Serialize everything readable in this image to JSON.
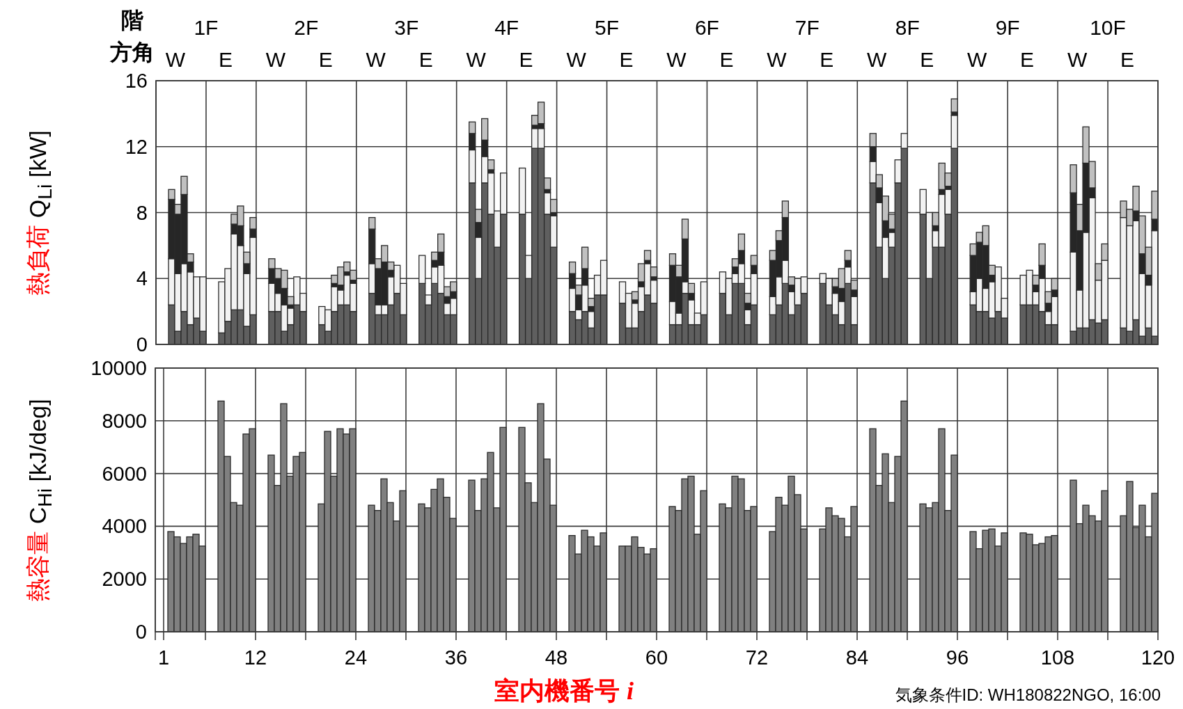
{
  "chart_data": [
    {
      "type": "bar",
      "stacked": true,
      "ylabel": "熱負荷 Q$_{Li}$ [kW]",
      "x": [
        1.875,
        2.625,
        3.375,
        4.125,
        4.875,
        5.625,
        7.875,
        8.625,
        9.375,
        10.125,
        10.875,
        11.625,
        13.875,
        14.625,
        15.375,
        16.125,
        16.875,
        17.625,
        19.875,
        20.625,
        21.375,
        22.125,
        22.875,
        23.625,
        25.875,
        26.625,
        27.375,
        28.125,
        28.875,
        29.625,
        31.875,
        32.625,
        33.375,
        34.125,
        34.875,
        35.625,
        37.875,
        38.625,
        39.375,
        40.125,
        40.875,
        41.625,
        43.875,
        44.625,
        45.375,
        46.125,
        46.875,
        47.625,
        49.875,
        50.625,
        51.375,
        52.125,
        52.875,
        53.625,
        55.875,
        56.625,
        57.375,
        58.125,
        58.875,
        59.625,
        61.875,
        62.625,
        63.375,
        64.125,
        64.875,
        65.625,
        67.875,
        68.625,
        69.375,
        70.125,
        70.875,
        71.625,
        73.875,
        74.625,
        75.375,
        76.125,
        76.875,
        77.625,
        79.875,
        80.625,
        81.375,
        82.125,
        82.875,
        83.625,
        85.875,
        86.625,
        87.375,
        88.125,
        88.875,
        89.625,
        91.875,
        92.625,
        93.375,
        94.125,
        94.875,
        95.625,
        97.875,
        98.625,
        99.375,
        100.125,
        100.875,
        101.625,
        103.875,
        104.625,
        105.375,
        106.125,
        106.875,
        107.625,
        109.875,
        110.625,
        111.375,
        112.125,
        112.875,
        113.625,
        115.875,
        116.625,
        117.375,
        118.125,
        118.875,
        119.625
      ],
      "series": [
        {
          "color": "#5f5f5f",
          "values": [
            2.4,
            0.8,
            2.0,
            1.2,
            1.6,
            0.8,
            0.7,
            1.4,
            2.1,
            2.1,
            1.1,
            1.8,
            2.0,
            2.0,
            0.8,
            1.2,
            2.4,
            2.0,
            1.2,
            0.8,
            2.0,
            2.4,
            2.4,
            2.0,
            3.1,
            1.8,
            1.8,
            2.4,
            3.1,
            1.8,
            3.7,
            2.4,
            3.7,
            3.1,
            1.8,
            1.8,
            9.8,
            4.0,
            9.8,
            7.9,
            5.9,
            7.9,
            7.9,
            4.0,
            11.9,
            11.9,
            7.9,
            5.9,
            2.0,
            1.5,
            2.0,
            1.0,
            3.0,
            3.0,
            2.5,
            1.0,
            1.0,
            2.0,
            3.0,
            2.5,
            1.2,
            1.2,
            3.1,
            1.2,
            1.2,
            1.8,
            3.1,
            1.8,
            3.7,
            3.7,
            1.2,
            2.4,
            1.8,
            2.4,
            3.7,
            1.8,
            2.4,
            3.1,
            3.7,
            2.4,
            1.8,
            1.2,
            3.7,
            1.2,
            9.8,
            5.9,
            4.0,
            5.9,
            9.8,
            11.9,
            7.9,
            4.0,
            5.9,
            5.9,
            7.9,
            11.9,
            2.4,
            2.0,
            2.0,
            1.6,
            2.0,
            1.6,
            2.4,
            2.4,
            2.4,
            2.0,
            1.2,
            1.2,
            0.8,
            1.0,
            1.0,
            1.5,
            1.3,
            1.5,
            1.0,
            0.8,
            1.5,
            0.5,
            1.0,
            0.5
          ]
        },
        {
          "color": "#f2f2f2",
          "values": [
            2.8,
            3.5,
            2.9,
            3.2,
            2.5,
            3.3,
            3.1,
            3.2,
            4.6,
            3.9,
            3.2,
            4.7,
            1.7,
            1.1,
            1.6,
            1.0,
            1.7,
            1.1,
            1.1,
            1.3,
            1.5,
            0.9,
            1.8,
            1.7,
            1.8,
            0.6,
            0.6,
            1.7,
            1.7,
            1.9,
            1.7,
            0.6,
            1.0,
            1.7,
            0.7,
            1.0,
            2.0,
            2.5,
            1.6,
            2.5,
            2.2,
            2.5,
            2.8,
            1.4,
            1.2,
            1.2,
            1.3,
            1.9,
            1.4,
            0.6,
            1.6,
            1.0,
            1.2,
            2.1,
            1.3,
            2.1,
            1.5,
            1.5,
            1.9,
            1.4,
            1.4,
            0.7,
            0.7,
            1.5,
            0.7,
            2.0,
            1.3,
            2.2,
            0.6,
            1.2,
            0.9,
            1.9,
            1.1,
            1.7,
            1.4,
            1.4,
            1.6,
            1.0,
            0.6,
            1.6,
            1.3,
            1.4,
            1.0,
            1.7,
            1.3,
            2.7,
            2.5,
            0.9,
            1.4,
            0.9,
            1.5,
            4.0,
            1.0,
            3.2,
            1.5,
            2.0,
            0.8,
            2.0,
            1.4,
            2.2,
            2.7,
            1.2,
            1.8,
            2.1,
            0.8,
            2.0,
            0.8,
            1.7,
            4.8,
            2.3,
            5.8,
            7.4,
            2.6,
            3.6,
            6.7,
            6.4,
            6.0,
            3.8,
            2.6,
            6.4
          ]
        },
        {
          "color": "#262626",
          "values": [
            3.6,
            3.6,
            4.2,
            0.6,
            0,
            0,
            0,
            0,
            0.6,
            1.2,
            0.6,
            0.5,
            0.9,
            0.9,
            1.0,
            0.2,
            0,
            0,
            0,
            0,
            0.2,
            0.3,
            0.2,
            0.2,
            2.1,
            2.2,
            2.6,
            0.4,
            0,
            0,
            0,
            0,
            0.4,
            0.8,
            0.4,
            0.4,
            1.0,
            0.9,
            1.0,
            0.2,
            0,
            0,
            0,
            0,
            0.2,
            0.3,
            0.2,
            0.2,
            0.9,
            0.9,
            1.0,
            0.3,
            0,
            0,
            0,
            0,
            0.2,
            0.3,
            0.2,
            0.2,
            2.2,
            2.2,
            2.6,
            0.4,
            0,
            0,
            0,
            0,
            0.4,
            0.8,
            0.4,
            0.5,
            2.2,
            2.2,
            2.6,
            0.4,
            0,
            0,
            0,
            0,
            0.4,
            0.8,
            0.4,
            0.4,
            0.9,
            0.9,
            1.0,
            0.2,
            0,
            0,
            0,
            0,
            0.3,
            0.3,
            0.2,
            0.2,
            2.2,
            2.2,
            2.6,
            0.4,
            0,
            0,
            0,
            0,
            0.4,
            0.8,
            0.5,
            0.4,
            3.6,
            3.6,
            4.2,
            0.6,
            0,
            0,
            0,
            0,
            0.6,
            1.2,
            0.6,
            0.7
          ]
        },
        {
          "color": "#c0c0c0",
          "values": [
            0.6,
            0.6,
            1.1,
            0.5,
            0,
            0,
            0,
            0,
            0.6,
            1.2,
            0.7,
            0.7,
            0.6,
            0.6,
            1.1,
            0.5,
            0,
            0,
            0,
            0,
            0.5,
            1.1,
            0.6,
            0.6,
            0.7,
            0.6,
            1.0,
            0.5,
            0,
            0,
            0,
            0,
            0.5,
            1.1,
            0.6,
            0.6,
            0.7,
            0.8,
            1.3,
            0.6,
            0,
            0,
            0,
            0,
            0.6,
            1.3,
            0.7,
            0.8,
            0.7,
            0.6,
            1.3,
            0.5,
            0,
            0,
            0,
            0,
            0.5,
            1.1,
            0.6,
            0.6,
            0.7,
            0.7,
            1.2,
            0.6,
            0,
            0,
            0,
            0,
            0.5,
            1.0,
            0.6,
            0.6,
            0.6,
            0.6,
            1.0,
            0.5,
            0,
            0,
            0,
            0,
            0.5,
            1.2,
            0.6,
            0.6,
            0.8,
            0.8,
            1.5,
            0.9,
            0,
            0,
            0,
            0,
            0.8,
            1.6,
            0.8,
            0.8,
            0.7,
            0.6,
            1.2,
            0.6,
            0,
            0,
            0,
            0,
            0.6,
            1.3,
            0.7,
            0.7,
            1.7,
            1.6,
            2.2,
            1.6,
            1.0,
            1.0,
            1.0,
            1.0,
            1.5,
            2.3,
            1.7,
            1.7
          ]
        }
      ],
      "xlim": [
        0,
        120
      ],
      "xticks": [
        {
          "value": 0,
          "label": null
        },
        {
          "value": 6,
          "label": null
        },
        {
          "value": 12,
          "label": null
        },
        {
          "value": 18,
          "label": null
        },
        {
          "value": 24,
          "label": null
        },
        {
          "value": 30,
          "label": null
        },
        {
          "value": 36,
          "label": null
        },
        {
          "value": 42,
          "label": null
        },
        {
          "value": 48,
          "label": null
        },
        {
          "value": 54,
          "label": null
        },
        {
          "value": 60,
          "label": null
        },
        {
          "value": 66,
          "label": null
        },
        {
          "value": 72,
          "label": null
        },
        {
          "value": 78,
          "label": null
        },
        {
          "value": 84,
          "label": null
        },
        {
          "value": 90,
          "label": null
        },
        {
          "value": 96,
          "label": null
        },
        {
          "value": 102,
          "label": null
        },
        {
          "value": 108,
          "label": null
        },
        {
          "value": 114,
          "label": null
        },
        {
          "value": 120,
          "label": null
        }
      ],
      "ylim": [
        0,
        16
      ],
      "yticks": [
        0,
        4,
        8,
        12,
        16
      ],
      "annotations": [
        "階",
        "1F",
        "2F",
        "3F",
        "4F",
        "5F",
        "6F",
        "7F",
        "8F",
        "9F",
        "10F",
        "方角",
        "W",
        "E",
        "W",
        "E",
        "W",
        "E",
        "W",
        "E",
        "W",
        "E",
        "W",
        "E",
        "W",
        "E",
        "W",
        "E",
        "W",
        "E",
        "W",
        "E"
      ],
      "tick_labels": "y",
      "grid": true
    },
    {
      "type": "bar",
      "ylabel": "熱容量 C$_{Hi}$ [kJ/deg]",
      "xlabel": "室内機番号 i",
      "x": [
        1.875,
        2.625,
        3.375,
        4.125,
        4.875,
        5.625,
        7.875,
        8.625,
        9.375,
        10.125,
        10.875,
        11.625,
        13.875,
        14.625,
        15.375,
        16.125,
        16.875,
        17.625,
        19.875,
        20.625,
        21.375,
        22.125,
        22.875,
        23.625,
        25.875,
        26.625,
        27.375,
        28.125,
        28.875,
        29.625,
        31.875,
        32.625,
        33.375,
        34.125,
        34.875,
        35.625,
        37.875,
        38.625,
        39.375,
        40.125,
        40.875,
        41.625,
        43.875,
        44.625,
        45.375,
        46.125,
        46.875,
        47.625,
        49.875,
        50.625,
        51.375,
        52.125,
        52.875,
        53.625,
        55.875,
        56.625,
        57.375,
        58.125,
        58.875,
        59.625,
        61.875,
        62.625,
        63.375,
        64.125,
        64.875,
        65.625,
        67.875,
        68.625,
        69.375,
        70.125,
        70.875,
        71.625,
        73.875,
        74.625,
        75.375,
        76.125,
        76.875,
        77.625,
        79.875,
        80.625,
        81.375,
        82.125,
        82.875,
        83.625,
        85.875,
        86.625,
        87.375,
        88.125,
        88.875,
        89.625,
        91.875,
        92.625,
        93.375,
        94.125,
        94.875,
        95.625,
        97.875,
        98.625,
        99.375,
        100.125,
        100.875,
        101.625,
        103.875,
        104.625,
        105.375,
        106.125,
        106.875,
        107.625,
        109.875,
        110.625,
        111.375,
        112.125,
        112.875,
        113.625,
        115.875,
        116.625,
        117.375,
        118.125,
        118.875,
        119.625
      ],
      "values": [
        3800,
        3600,
        3350,
        3600,
        3700,
        3250,
        8750,
        6650,
        4900,
        4800,
        7500,
        7700,
        6700,
        5550,
        8650,
        5900,
        6650,
        6800,
        4850,
        7600,
        5900,
        7700,
        7500,
        7700,
        4800,
        4600,
        5800,
        4900,
        4200,
        5350,
        4850,
        4700,
        5400,
        5800,
        5100,
        4300,
        5750,
        4600,
        5800,
        6800,
        4700,
        7750,
        7750,
        5650,
        4900,
        8650,
        6550,
        4800,
        3650,
        2950,
        3850,
        3600,
        3250,
        3750,
        3250,
        3250,
        3600,
        3200,
        2950,
        3150,
        4750,
        4600,
        5800,
        5900,
        3700,
        5350,
        4850,
        4700,
        5900,
        5800,
        4600,
        4750,
        3800,
        5100,
        4800,
        5900,
        5200,
        3900,
        3900,
        4700,
        4400,
        4300,
        3600,
        4750,
        7700,
        5550,
        6750,
        4900,
        6650,
        8750,
        4850,
        4700,
        4900,
        7700,
        4600,
        6700,
        3800,
        3150,
        3850,
        3900,
        3250,
        3750,
        3750,
        3700,
        3300,
        3350,
        3600,
        3650,
        5750,
        4100,
        4800,
        4400,
        4200,
        5350,
        4400,
        5700,
        3950,
        4800,
        3600,
        5250
      ],
      "color": "#808080",
      "xlim": [
        0,
        120
      ],
      "xticks": [
        {
          "value": 0,
          "label": null
        },
        1,
        {
          "value": 6,
          "label": null
        },
        12,
        {
          "value": 18,
          "label": null
        },
        24,
        {
          "value": 30,
          "label": null
        },
        36,
        {
          "value": 42,
          "label": null
        },
        48,
        {
          "value": 54,
          "label": null
        },
        60,
        {
          "value": 66,
          "label": null
        },
        72,
        {
          "value": 78,
          "label": null
        },
        84,
        {
          "value": 90,
          "label": null
        },
        96,
        {
          "value": 102,
          "label": null
        },
        108,
        {
          "value": 114,
          "label": null
        },
        120
      ],
      "ylim": [
        0,
        10000
      ],
      "yticks": [
        0,
        2000,
        4000,
        6000,
        8000,
        10000
      ],
      "grid": true,
      "annotations": [
        "気象条件ID: WH180822NGO, 16:00"
      ]
    }
  ]
}
